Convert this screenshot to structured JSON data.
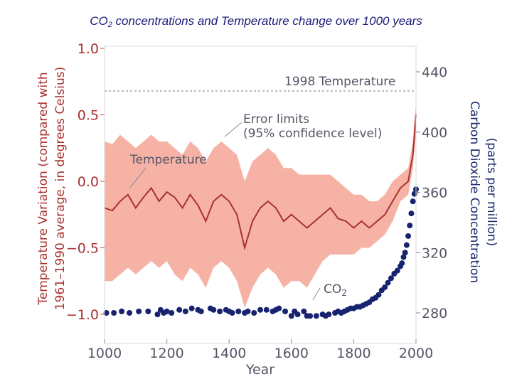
{
  "page": {
    "title_prefix": "CO",
    "title_sub": "2",
    "title_suffix": " concentrations and Temperature change over 1000 years"
  },
  "colors": {
    "temperature": "#a8312f",
    "error_band": "#f6b3a5",
    "co2": "#17236e",
    "reference_line": "#b8b8c0",
    "axis_text": "#555566"
  },
  "chart_data": {
    "type": "line",
    "title": "CO2 concentrations and Temperature change over 1000 years",
    "xlabel": "Year",
    "ylabel_left": "Temperature Variation (compared with 1961–1990 average, in degrees Celsius)",
    "ylabel_left_lines": [
      "Temperature Variation (compared with",
      "1961–1990 average, in degrees Celsius)"
    ],
    "ylabel_right": "Carbon Dioxide Concentration (parts per million)",
    "ylabel_right_lines": [
      "Carbon Dioxide Concentration",
      "(parts per million)"
    ],
    "xlim": [
      1000,
      2000
    ],
    "ylim_left": [
      -1.0,
      1.0
    ],
    "ylim_right": [
      280,
      440
    ],
    "x_ticks": [
      "1000",
      "1200",
      "1400",
      "1600",
      "1800",
      "2000"
    ],
    "y_left_ticks": [
      "1.0",
      "0.5",
      "0.0",
      "−0.5",
      "−1.0"
    ],
    "y_right_ticks": [
      "440",
      "400",
      "360",
      "320",
      "280"
    ],
    "annotations": {
      "reference_line_label": "1998 Temperature",
      "reference_line_value": 0.68,
      "error_label_line1": "Error limits",
      "error_label_line2": "(95% confidence level)",
      "temperature_label": "Temperature",
      "co2_label_prefix": "CO",
      "co2_label_sub": "2"
    },
    "series": [
      {
        "name": "Temperature",
        "axis": "left",
        "x": [
          1000,
          1025,
          1050,
          1075,
          1100,
          1125,
          1150,
          1175,
          1200,
          1225,
          1250,
          1275,
          1300,
          1325,
          1350,
          1375,
          1400,
          1425,
          1450,
          1475,
          1500,
          1525,
          1550,
          1575,
          1600,
          1625,
          1650,
          1675,
          1700,
          1725,
          1750,
          1775,
          1800,
          1825,
          1850,
          1875,
          1900,
          1925,
          1950,
          1975,
          1990,
          2000
        ],
        "y": [
          -0.2,
          -0.22,
          -0.15,
          -0.1,
          -0.2,
          -0.12,
          -0.05,
          -0.15,
          -0.08,
          -0.12,
          -0.2,
          -0.1,
          -0.18,
          -0.3,
          -0.15,
          -0.1,
          -0.15,
          -0.25,
          -0.5,
          -0.3,
          -0.2,
          -0.15,
          -0.2,
          -0.3,
          -0.25,
          -0.3,
          -0.35,
          -0.3,
          -0.25,
          -0.2,
          -0.28,
          -0.3,
          -0.35,
          -0.3,
          -0.35,
          -0.3,
          -0.25,
          -0.15,
          -0.05,
          0.0,
          0.2,
          0.5
        ],
        "error_upper": [
          0.3,
          0.28,
          0.35,
          0.3,
          0.25,
          0.3,
          0.35,
          0.3,
          0.3,
          0.25,
          0.2,
          0.3,
          0.25,
          0.15,
          0.25,
          0.3,
          0.25,
          0.2,
          0.0,
          0.15,
          0.2,
          0.25,
          0.2,
          0.1,
          0.1,
          0.05,
          0.05,
          0.05,
          0.05,
          0.05,
          0.0,
          -0.05,
          -0.1,
          -0.1,
          -0.15,
          -0.15,
          -0.1,
          0.0,
          0.05,
          0.1,
          0.3,
          0.6
        ],
        "error_lower": [
          -0.75,
          -0.75,
          -0.7,
          -0.65,
          -0.7,
          -0.65,
          -0.6,
          -0.65,
          -0.6,
          -0.7,
          -0.75,
          -0.65,
          -0.7,
          -0.8,
          -0.65,
          -0.6,
          -0.65,
          -0.75,
          -0.95,
          -0.8,
          -0.7,
          -0.65,
          -0.7,
          -0.8,
          -0.75,
          -0.75,
          -0.8,
          -0.7,
          -0.6,
          -0.55,
          -0.55,
          -0.55,
          -0.55,
          -0.5,
          -0.5,
          -0.45,
          -0.4,
          -0.3,
          -0.15,
          -0.1,
          0.1,
          0.35
        ]
      },
      {
        "name": "CO2",
        "axis": "right",
        "type": "scatter",
        "x": [
          1006,
          1030,
          1055,
          1080,
          1110,
          1140,
          1170,
          1180,
          1190,
          1200,
          1215,
          1240,
          1260,
          1280,
          1300,
          1310,
          1340,
          1350,
          1370,
          1390,
          1400,
          1410,
          1430,
          1450,
          1460,
          1480,
          1500,
          1520,
          1540,
          1550,
          1560,
          1580,
          1600,
          1610,
          1620,
          1640,
          1650,
          1660,
          1680,
          1700,
          1710,
          1720,
          1740,
          1750,
          1760,
          1770,
          1780,
          1790,
          1800,
          1810,
          1820,
          1830,
          1840,
          1850,
          1860,
          1870,
          1880,
          1890,
          1900,
          1910,
          1920,
          1930,
          1940,
          1950,
          1955,
          1960,
          1965,
          1970,
          1975,
          1980,
          1985,
          1990,
          1995,
          2000
        ],
        "y": [
          280,
          280,
          281,
          280,
          281,
          281,
          279,
          282,
          280,
          281,
          280,
          282,
          281,
          283,
          282,
          281,
          283,
          282,
          281,
          282,
          281,
          280,
          281,
          280,
          281,
          280,
          282,
          282,
          281,
          282,
          283,
          281,
          278,
          281,
          279,
          281,
          278,
          278,
          278,
          279,
          278,
          279,
          280,
          281,
          280,
          281,
          282,
          283,
          283,
          284,
          284,
          285,
          286,
          287,
          289,
          290,
          292,
          295,
          297,
          300,
          303,
          306,
          308,
          311,
          313,
          317,
          320,
          325,
          331,
          338,
          346,
          354,
          359,
          362
        ]
      }
    ]
  }
}
